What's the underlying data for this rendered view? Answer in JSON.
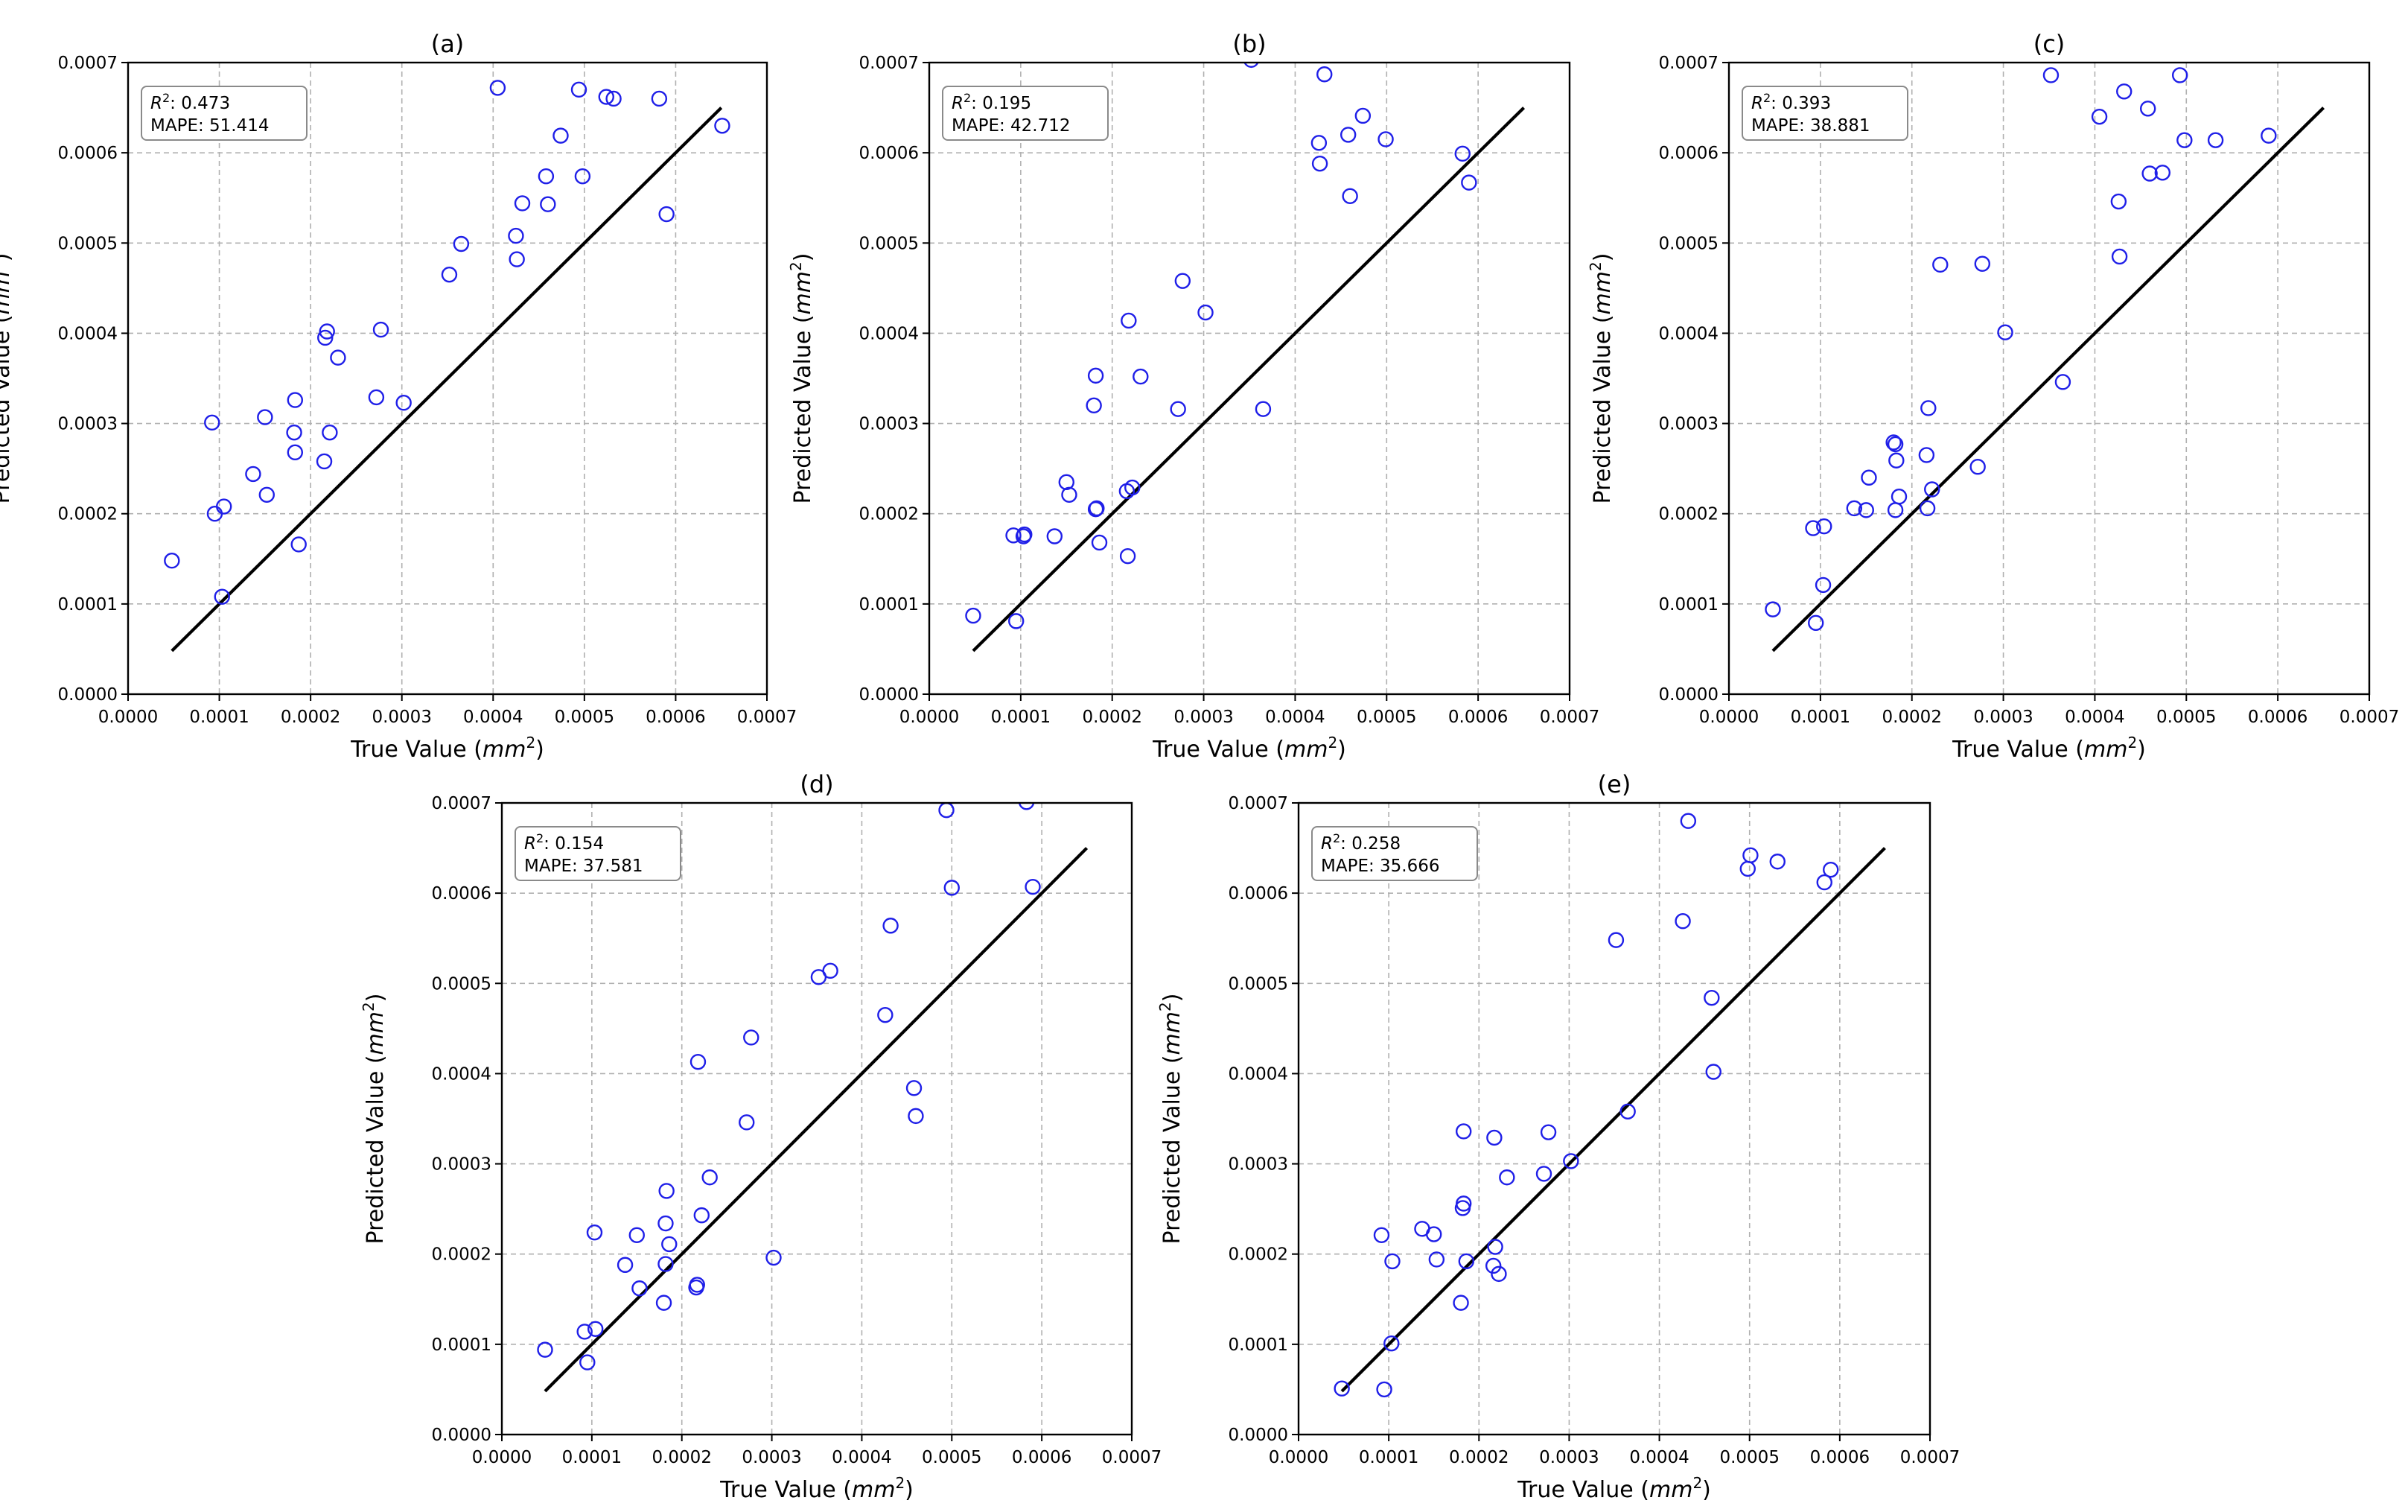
{
  "chart_data": [
    {
      "panel": "a",
      "type": "scatter",
      "title": "(a)",
      "xlabel": "True Value",
      "ylabel": "Predicted Value",
      "unit_base": "mm",
      "unit_exp": "2",
      "xlim": [
        0,
        0.0007
      ],
      "ylim": [
        0,
        0.0007
      ],
      "xticks": [
        "0.0000",
        "0.0001",
        "0.0002",
        "0.0003",
        "0.0004",
        "0.0005",
        "0.0006",
        "0.0007"
      ],
      "yticks": [
        "0.0000",
        "0.0001",
        "0.0002",
        "0.0003",
        "0.0004",
        "0.0005",
        "0.0006",
        "0.0007"
      ],
      "grid": true,
      "stats": {
        "r2_symbol": "R",
        "r2_exp": "2",
        "r2": ": 0.473",
        "mape": "MAPE: 51.414"
      },
      "reference_line": {
        "x": [
          4.8e-05,
          0.00065
        ],
        "y": [
          4.8e-05,
          0.00065
        ]
      },
      "points": [
        [
          4.8e-05,
          0.000148
        ],
        [
          9.2e-05,
          0.000301
        ],
        [
          9.5e-05,
          0.0002
        ],
        [
          0.000103,
          0.000108
        ],
        [
          0.000105,
          0.000208
        ],
        [
          0.000137,
          0.000244
        ],
        [
          0.00015,
          0.000307
        ],
        [
          0.000152,
          0.000221
        ],
        [
          0.000182,
          0.00029
        ],
        [
          0.000183,
          0.000268
        ],
        [
          0.000183,
          0.000326
        ],
        [
          0.000187,
          0.000166
        ],
        [
          0.000215,
          0.000258
        ],
        [
          0.000216,
          0.000395
        ],
        [
          0.000218,
          0.000402
        ],
        [
          0.000221,
          0.00029
        ],
        [
          0.00023,
          0.000373
        ],
        [
          0.000272,
          0.000329
        ],
        [
          0.000277,
          0.000404
        ],
        [
          0.000302,
          0.000323
        ],
        [
          0.000352,
          0.000465
        ],
        [
          0.000365,
          0.000499
        ],
        [
          0.000405,
          0.000672
        ],
        [
          0.000425,
          0.000508
        ],
        [
          0.000426,
          0.000482
        ],
        [
          0.000432,
          0.000544
        ],
        [
          0.000458,
          0.000574
        ],
        [
          0.00046,
          0.000543
        ],
        [
          0.000474,
          0.000619
        ],
        [
          0.000494,
          0.00067
        ],
        [
          0.000498,
          0.000574
        ],
        [
          0.000524,
          0.000662
        ],
        [
          0.000532,
          0.00066
        ],
        [
          0.000582,
          0.00066
        ],
        [
          0.00059,
          0.000532
        ],
        [
          0.000651,
          0.00063
        ]
      ]
    },
    {
      "panel": "b",
      "type": "scatter",
      "title": "(b)",
      "xlabel": "True Value",
      "ylabel": "Predicted Value",
      "unit_base": "mm",
      "unit_exp": "2",
      "xlim": [
        0,
        0.0007
      ],
      "ylim": [
        0,
        0.0007
      ],
      "xticks": [
        "0.0000",
        "0.0001",
        "0.0002",
        "0.0003",
        "0.0004",
        "0.0005",
        "0.0006",
        "0.0007"
      ],
      "yticks": [
        "0.0000",
        "0.0001",
        "0.0002",
        "0.0003",
        "0.0004",
        "0.0005",
        "0.0006",
        "0.0007"
      ],
      "grid": true,
      "stats": {
        "r2_symbol": "R",
        "r2_exp": "2",
        "r2": ": 0.195",
        "mape": "MAPE: 42.712"
      },
      "reference_line": {
        "x": [
          4.8e-05,
          0.00065
        ],
        "y": [
          4.8e-05,
          0.00065
        ]
      },
      "points": [
        [
          4.8e-05,
          8.7e-05
        ],
        [
          9.2e-05,
          0.000176
        ],
        [
          9.5e-05,
          8.1e-05
        ],
        [
          0.000103,
          0.000175
        ],
        [
          0.000104,
          0.000177
        ],
        [
          0.000137,
          0.000175
        ],
        [
          0.00015,
          0.000235
        ],
        [
          0.000153,
          0.000221
        ],
        [
          0.00018,
          0.00032
        ],
        [
          0.000182,
          0.000353
        ],
        [
          0.000182,
          0.000205
        ],
        [
          0.000183,
          0.000206
        ],
        [
          0.000186,
          0.000168
        ],
        [
          0.000216,
          0.000225
        ],
        [
          0.000217,
          0.000153
        ],
        [
          0.000218,
          0.000414
        ],
        [
          0.000222,
          0.000229
        ],
        [
          0.000231,
          0.000352
        ],
        [
          0.000272,
          0.000316
        ],
        [
          0.000277,
          0.000458
        ],
        [
          0.000302,
          0.000423
        ],
        [
          0.000352,
          0.000703
        ],
        [
          0.000365,
          0.000316
        ],
        [
          0.000426,
          0.000611
        ],
        [
          0.000427,
          0.000588
        ],
        [
          0.000432,
          0.000687
        ],
        [
          0.000458,
          0.00062
        ],
        [
          0.00046,
          0.000552
        ],
        [
          0.000474,
          0.000641
        ],
        [
          0.000499,
          0.000615
        ],
        [
          0.000583,
          0.000599
        ],
        [
          0.00059,
          0.000567
        ]
      ]
    },
    {
      "panel": "c",
      "type": "scatter",
      "title": "(c)",
      "xlabel": "True Value",
      "ylabel": "Predicted Value",
      "unit_base": "mm",
      "unit_exp": "2",
      "xlim": [
        0,
        0.0007
      ],
      "ylim": [
        0,
        0.0007
      ],
      "xticks": [
        "0.0000",
        "0.0001",
        "0.0002",
        "0.0003",
        "0.0004",
        "0.0005",
        "0.0006",
        "0.0007"
      ],
      "yticks": [
        "0.0000",
        "0.0001",
        "0.0002",
        "0.0003",
        "0.0004",
        "0.0005",
        "0.0006",
        "0.0007"
      ],
      "grid": true,
      "stats": {
        "r2_symbol": "R",
        "r2_exp": "2",
        "r2": ": 0.393",
        "mape": "MAPE: 38.881"
      },
      "reference_line": {
        "x": [
          4.8e-05,
          0.00065
        ],
        "y": [
          4.8e-05,
          0.00065
        ]
      },
      "points": [
        [
          4.8e-05,
          9.4e-05
        ],
        [
          9.2e-05,
          0.000184
        ],
        [
          9.5e-05,
          7.9e-05
        ],
        [
          0.000103,
          0.000121
        ],
        [
          0.000104,
          0.000186
        ],
        [
          0.000137,
          0.000206
        ],
        [
          0.00015,
          0.000204
        ],
        [
          0.000153,
          0.00024
        ],
        [
          0.00018,
          0.000279
        ],
        [
          0.000182,
          0.000277
        ],
        [
          0.000182,
          0.000204
        ],
        [
          0.000183,
          0.000259
        ],
        [
          0.000186,
          0.000219
        ],
        [
          0.000216,
          0.000265
        ],
        [
          0.000217,
          0.000206
        ],
        [
          0.000218,
          0.000317
        ],
        [
          0.000222,
          0.000227
        ],
        [
          0.000231,
          0.000476
        ],
        [
          0.000272,
          0.000252
        ],
        [
          0.000277,
          0.000477
        ],
        [
          0.000302,
          0.000401
        ],
        [
          0.000352,
          0.000686
        ],
        [
          0.000365,
          0.000346
        ],
        [
          0.000405,
          0.00064
        ],
        [
          0.000426,
          0.000546
        ],
        [
          0.000427,
          0.000485
        ],
        [
          0.000432,
          0.000668
        ],
        [
          0.000458,
          0.000649
        ],
        [
          0.00046,
          0.000577
        ],
        [
          0.000474,
          0.000578
        ],
        [
          0.000493,
          0.000686
        ],
        [
          0.000498,
          0.000614
        ],
        [
          0.000532,
          0.000614
        ],
        [
          0.00059,
          0.000619
        ]
      ]
    },
    {
      "panel": "d",
      "type": "scatter",
      "title": "(d)",
      "xlabel": "True Value",
      "ylabel": "Predicted Value",
      "unit_base": "mm",
      "unit_exp": "2",
      "xlim": [
        0,
        0.0007
      ],
      "ylim": [
        0,
        0.0007
      ],
      "xticks": [
        "0.0000",
        "0.0001",
        "0.0002",
        "0.0003",
        "0.0004",
        "0.0005",
        "0.0006",
        "0.0007"
      ],
      "yticks": [
        "0.0000",
        "0.0001",
        "0.0002",
        "0.0003",
        "0.0004",
        "0.0005",
        "0.0006",
        "0.0007"
      ],
      "grid": true,
      "stats": {
        "r2_symbol": "R",
        "r2_exp": "2",
        "r2": ": 0.154",
        "mape": "MAPE: 37.581"
      },
      "reference_line": {
        "x": [
          4.8e-05,
          0.00065
        ],
        "y": [
          4.8e-05,
          0.00065
        ]
      },
      "points": [
        [
          4.8e-05,
          9.4e-05
        ],
        [
          9.2e-05,
          0.000114
        ],
        [
          9.5e-05,
          8e-05
        ],
        [
          0.000103,
          0.000224
        ],
        [
          0.000104,
          0.000117
        ],
        [
          0.000137,
          0.000188
        ],
        [
          0.00015,
          0.000221
        ],
        [
          0.000153,
          0.000162
        ],
        [
          0.00018,
          0.000146
        ],
        [
          0.000182,
          0.000189
        ],
        [
          0.000182,
          0.000234
        ],
        [
          0.000183,
          0.00027
        ],
        [
          0.000186,
          0.000211
        ],
        [
          0.000216,
          0.000163
        ],
        [
          0.000217,
          0.000166
        ],
        [
          0.000218,
          0.000413
        ],
        [
          0.000222,
          0.000243
        ],
        [
          0.000231,
          0.000285
        ],
        [
          0.000272,
          0.000346
        ],
        [
          0.000277,
          0.00044
        ],
        [
          0.000302,
          0.000196
        ],
        [
          0.000352,
          0.000507
        ],
        [
          0.000365,
          0.000514
        ],
        [
          0.000426,
          0.000465
        ],
        [
          0.000432,
          0.000564
        ],
        [
          0.000458,
          0.000384
        ],
        [
          0.00046,
          0.000353
        ],
        [
          0.000494,
          0.000692
        ],
        [
          0.0005,
          0.000606
        ],
        [
          0.000583,
          0.000701
        ],
        [
          0.00059,
          0.000607
        ]
      ]
    },
    {
      "panel": "e",
      "type": "scatter",
      "title": "(e)",
      "xlabel": "True Value",
      "ylabel": "Predicted Value",
      "unit_base": "mm",
      "unit_exp": "2",
      "xlim": [
        0,
        0.0007
      ],
      "ylim": [
        0,
        0.0007
      ],
      "xticks": [
        "0.0000",
        "0.0001",
        "0.0002",
        "0.0003",
        "0.0004",
        "0.0005",
        "0.0006",
        "0.0007"
      ],
      "yticks": [
        "0.0000",
        "0.0001",
        "0.0002",
        "0.0003",
        "0.0004",
        "0.0005",
        "0.0006",
        "0.0007"
      ],
      "grid": true,
      "stats": {
        "r2_symbol": "R",
        "r2_exp": "2",
        "r2": ": 0.258",
        "mape": "MAPE: 35.666"
      },
      "reference_line": {
        "x": [
          4.8e-05,
          0.00065
        ],
        "y": [
          4.8e-05,
          0.00065
        ]
      },
      "points": [
        [
          4.8e-05,
          5.1e-05
        ],
        [
          9.2e-05,
          0.000221
        ],
        [
          9.5e-05,
          5e-05
        ],
        [
          0.000103,
          0.000101
        ],
        [
          0.000104,
          0.000192
        ],
        [
          0.000137,
          0.000228
        ],
        [
          0.00015,
          0.000222
        ],
        [
          0.000153,
          0.000194
        ],
        [
          0.00018,
          0.000146
        ],
        [
          0.000182,
          0.000251
        ],
        [
          0.000183,
          0.000256
        ],
        [
          0.000183,
          0.000336
        ],
        [
          0.000186,
          0.000192
        ],
        [
          0.000216,
          0.000187
        ],
        [
          0.000217,
          0.000329
        ],
        [
          0.000218,
          0.000208
        ],
        [
          0.000222,
          0.000178
        ],
        [
          0.000231,
          0.000285
        ],
        [
          0.000272,
          0.000289
        ],
        [
          0.000277,
          0.000335
        ],
        [
          0.000302,
          0.000303
        ],
        [
          0.000352,
          0.000548
        ],
        [
          0.000365,
          0.000358
        ],
        [
          0.000426,
          0.000569
        ],
        [
          0.000432,
          0.00068
        ],
        [
          0.000458,
          0.000484
        ],
        [
          0.00046,
          0.000402
        ],
        [
          0.000498,
          0.000627
        ],
        [
          0.000501,
          0.000642
        ],
        [
          0.000531,
          0.000635
        ],
        [
          0.000583,
          0.000612
        ],
        [
          0.00059,
          0.000626
        ]
      ]
    }
  ]
}
